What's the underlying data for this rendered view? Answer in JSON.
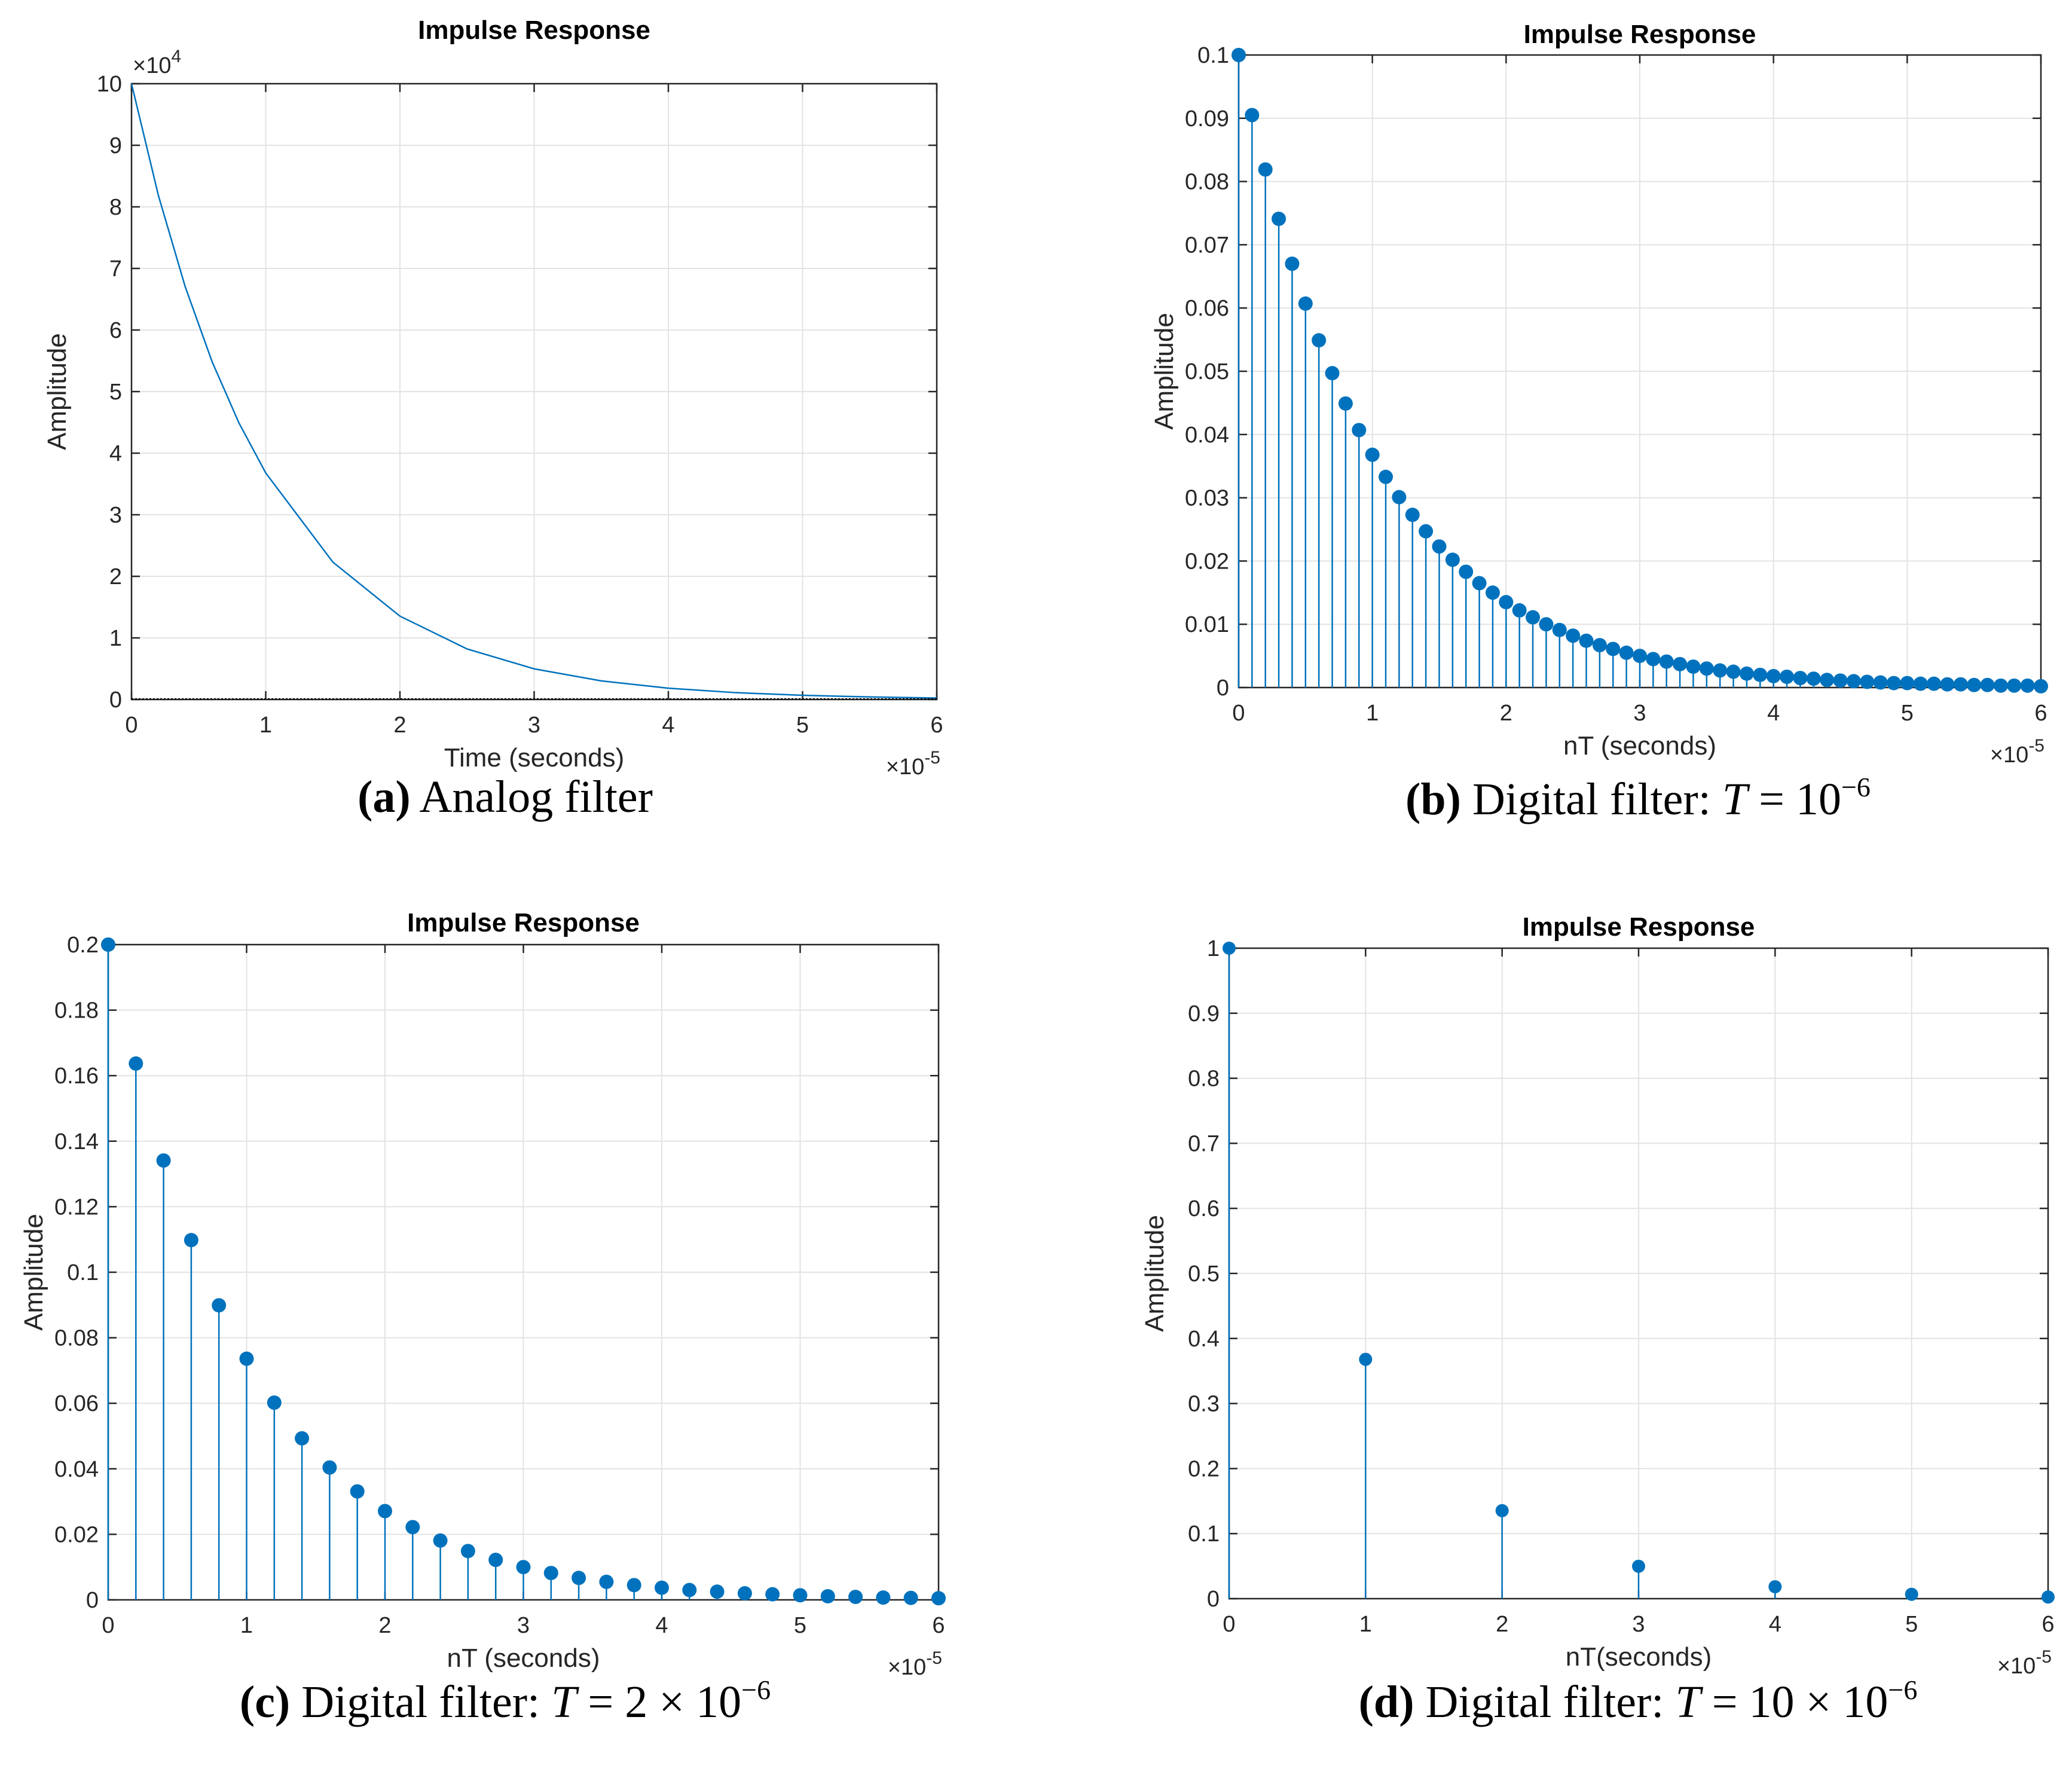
{
  "colors": {
    "series": "#0072BD",
    "grid": "#e3e3e3",
    "axes": "#262626",
    "text": "#262626"
  },
  "chart_data": [
    {
      "id": "a",
      "type": "line",
      "title": "Impulse Response",
      "xlabel": "Time (seconds)",
      "ylabel": "Amplitude",
      "xlim": [
        0,
        6e-05
      ],
      "ylim": [
        0,
        100000
      ],
      "xticks": [
        0,
        1,
        2,
        3,
        4,
        5,
        6
      ],
      "yticks": [
        0,
        1,
        2,
        3,
        4,
        5,
        6,
        7,
        8,
        9,
        10
      ],
      "x_multiplier": {
        "base": "×10",
        "exp": "-5"
      },
      "y_multiplier": {
        "base": "×10",
        "exp": "4"
      },
      "grid": true,
      "series": [
        {
          "x": [
            0,
            2e-06,
            4e-06,
            6e-06,
            8e-06,
            1e-05,
            1.5e-05,
            2e-05,
            2.5e-05,
            3e-05,
            3.5e-05,
            4e-05,
            4.5e-05,
            5e-05,
            5.5e-05,
            6e-05
          ],
          "y": [
            100000,
            81873,
            67032,
            54881,
            44933,
            36788,
            22313,
            13534,
            8208,
            4979,
            3020,
            1832,
            1111,
            674,
            409,
            248
          ]
        }
      ],
      "caption": {
        "letter": "(a)",
        "text": " Analog filter"
      }
    },
    {
      "id": "b",
      "type": "scatter",
      "marker_style": "stem",
      "title": "Impulse Response",
      "xlabel": "nT (seconds)",
      "ylabel": "Amplitude",
      "xlim": [
        0,
        6e-05
      ],
      "ylim": [
        0,
        0.1
      ],
      "xticks": [
        0,
        1,
        2,
        3,
        4,
        5,
        6
      ],
      "yticks": [
        "0",
        "0.01",
        "0.02",
        "0.03",
        "0.04",
        "0.05",
        "0.06",
        "0.07",
        "0.08",
        "0.09",
        "0.1"
      ],
      "x_multiplier": {
        "base": "×10",
        "exp": "-5"
      },
      "grid": true,
      "series": [
        {
          "x_start": 0,
          "x_step": 1e-06,
          "y": [
            0.1,
            0.0905,
            0.0819,
            0.0741,
            0.067,
            0.0607,
            0.0549,
            0.0497,
            0.0449,
            0.0407,
            0.0368,
            0.0333,
            0.0301,
            0.0273,
            0.0247,
            0.0223,
            0.0202,
            0.0183,
            0.0165,
            0.015,
            0.0135,
            0.0122,
            0.0111,
            0.01,
            0.0091,
            0.0082,
            0.0074,
            0.0067,
            0.0061,
            0.0055,
            0.005,
            0.0045,
            0.0041,
            0.0037,
            0.0033,
            0.003,
            0.0027,
            0.0025,
            0.0022,
            0.002,
            0.0018,
            0.0017,
            0.0015,
            0.0014,
            0.0012,
            0.0011,
            0.001,
            0.0009,
            0.0008,
            0.0007,
            0.0007,
            0.0006,
            0.0006,
            0.0005,
            0.0005,
            0.0004,
            0.0004,
            0.0003,
            0.0003,
            0.0003,
            0.0002
          ]
        }
      ],
      "caption": {
        "letter": "(b)",
        "text": " Digital filter: ",
        "var": "T",
        "rest": " = 10",
        "sup": "−6"
      }
    },
    {
      "id": "c",
      "type": "scatter",
      "marker_style": "stem",
      "title": "Impulse Response",
      "xlabel": "nT (seconds)",
      "ylabel": "Amplitude",
      "xlim": [
        0,
        6e-05
      ],
      "ylim": [
        0,
        0.2
      ],
      "xticks": [
        0,
        1,
        2,
        3,
        4,
        5,
        6
      ],
      "yticks": [
        "0",
        "0.02",
        "0.04",
        "0.06",
        "0.08",
        "0.1",
        "0.12",
        "0.14",
        "0.16",
        "0.18",
        "0.2"
      ],
      "x_multiplier": {
        "base": "×10",
        "exp": "-5"
      },
      "grid": true,
      "series": [
        {
          "x_start": 0,
          "x_step": 2e-06,
          "y": [
            0.2,
            0.1637,
            0.1341,
            0.1098,
            0.0899,
            0.0736,
            0.0602,
            0.0493,
            0.0404,
            0.0331,
            0.0271,
            0.0222,
            0.0181,
            0.0149,
            0.0122,
            0.01,
            0.0082,
            0.0067,
            0.0055,
            0.0045,
            0.0037,
            0.003,
            0.0025,
            0.002,
            0.0017,
            0.0014,
            0.0011,
            0.0009,
            0.0007,
            0.0006,
            0.0005
          ]
        }
      ],
      "caption": {
        "letter": "(c)",
        "text": " Digital filter: ",
        "var": "T",
        "rest": " = 2 × 10",
        "sup": "−6"
      }
    },
    {
      "id": "d",
      "type": "scatter",
      "marker_style": "stem",
      "title": "Impulse Response",
      "xlabel": "nT(seconds)",
      "ylabel": "Amplitude",
      "xlim": [
        0,
        6e-05
      ],
      "ylim": [
        0,
        1
      ],
      "xticks": [
        0,
        1,
        2,
        3,
        4,
        5,
        6
      ],
      "yticks": [
        "0",
        "0.1",
        "0.2",
        "0.3",
        "0.4",
        "0.5",
        "0.6",
        "0.7",
        "0.8",
        "0.9",
        "1"
      ],
      "x_multiplier": {
        "base": "×10",
        "exp": "-5"
      },
      "grid": true,
      "series": [
        {
          "x_start": 0,
          "x_step": 1e-05,
          "y": [
            1,
            0.3679,
            0.1353,
            0.0498,
            0.0183,
            0.0067,
            0.0025
          ]
        }
      ],
      "caption": {
        "letter": "(d)",
        "text": " Digital filter: ",
        "var": "T",
        "rest": " = 10 × 10",
        "sup": "−6"
      }
    }
  ]
}
